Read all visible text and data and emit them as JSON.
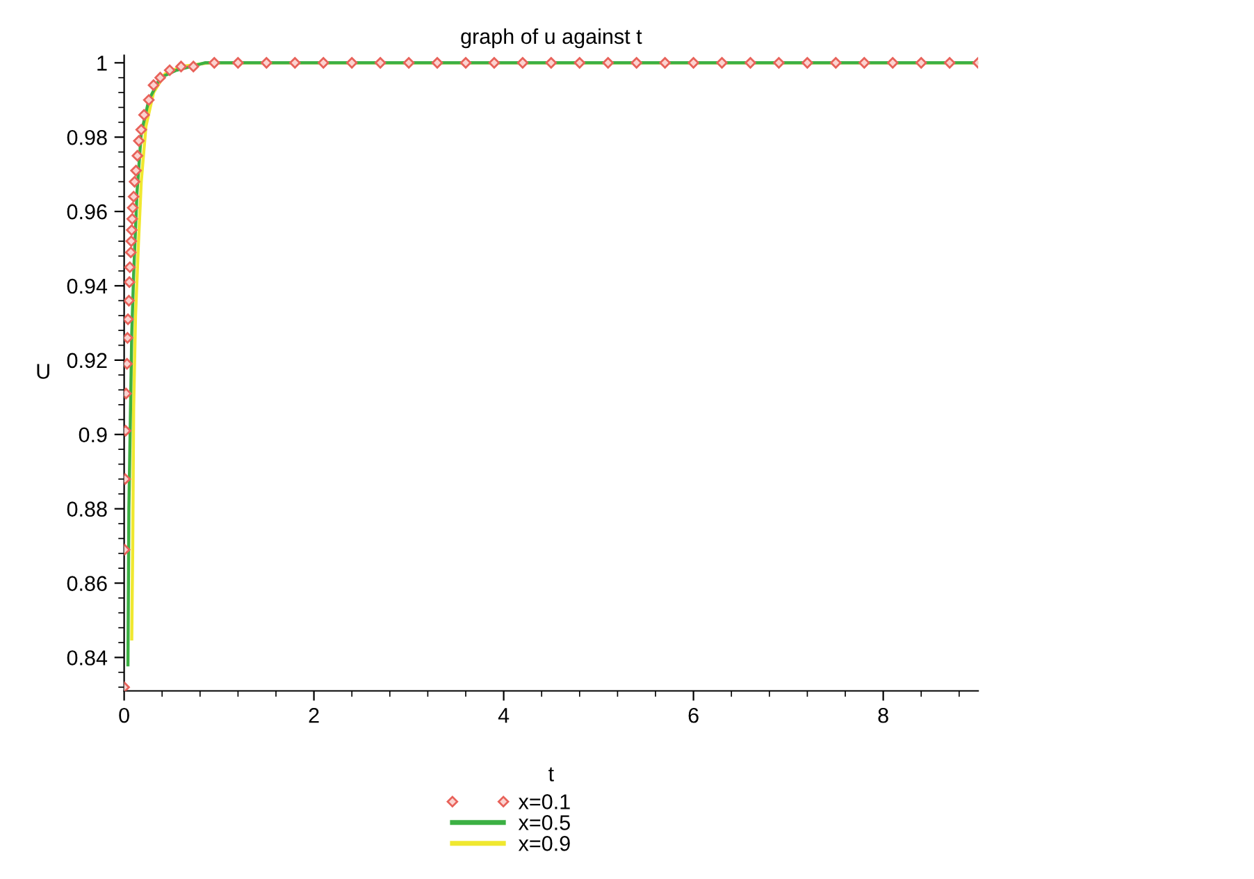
{
  "chart_data": {
    "type": "line",
    "title": "graph of u against t",
    "xlabel": "t",
    "ylabel": "U",
    "xlim": [
      0,
      9
    ],
    "ylim": [
      0.831,
      1.002
    ],
    "xticks": [
      0,
      {
        "value": 0.4,
        "label": null
      },
      {
        "value": 0.8,
        "label": null
      },
      {
        "value": 1.2,
        "label": null
      },
      {
        "value": 1.6,
        "label": null
      },
      2,
      {
        "value": 2.4,
        "label": null
      },
      {
        "value": 2.8,
        "label": null
      },
      {
        "value": 3.2,
        "label": null
      },
      {
        "value": 3.6,
        "label": null
      },
      4,
      {
        "value": 4.4,
        "label": null
      },
      {
        "value": 4.8,
        "label": null
      },
      {
        "value": 5.2,
        "label": null
      },
      {
        "value": 5.6,
        "label": null
      },
      6,
      {
        "value": 6.4,
        "label": null
      },
      {
        "value": 6.8,
        "label": null
      },
      {
        "value": 7.2,
        "label": null
      },
      {
        "value": 7.6,
        "label": null
      },
      8,
      {
        "value": 8.4,
        "label": null
      },
      {
        "value": 8.8,
        "label": null
      }
    ],
    "yticks": [
      {
        "value": 0.832,
        "label": null
      },
      {
        "value": 0.836,
        "label": null
      },
      0.84,
      {
        "value": 0.844,
        "label": null
      },
      {
        "value": 0.848,
        "label": null
      },
      {
        "value": 0.852,
        "label": null
      },
      {
        "value": 0.856,
        "label": null
      },
      0.86,
      {
        "value": 0.864,
        "label": null
      },
      {
        "value": 0.868,
        "label": null
      },
      {
        "value": 0.872,
        "label": null
      },
      {
        "value": 0.876,
        "label": null
      },
      0.88,
      {
        "value": 0.884,
        "label": null
      },
      {
        "value": 0.888,
        "label": null
      },
      {
        "value": 0.892,
        "label": null
      },
      {
        "value": 0.896,
        "label": null
      },
      0.9,
      {
        "value": 0.904,
        "label": null
      },
      {
        "value": 0.908,
        "label": null
      },
      {
        "value": 0.912,
        "label": null
      },
      {
        "value": 0.916,
        "label": null
      },
      0.92,
      {
        "value": 0.924,
        "label": null
      },
      {
        "value": 0.928,
        "label": null
      },
      {
        "value": 0.932,
        "label": null
      },
      {
        "value": 0.936,
        "label": null
      },
      0.94,
      {
        "value": 0.944,
        "label": null
      },
      {
        "value": 0.948,
        "label": null
      },
      {
        "value": 0.952,
        "label": null
      },
      {
        "value": 0.956,
        "label": null
      },
      0.96,
      {
        "value": 0.964,
        "label": null
      },
      {
        "value": 0.968,
        "label": null
      },
      {
        "value": 0.972,
        "label": null
      },
      {
        "value": 0.976,
        "label": null
      },
      0.98,
      {
        "value": 0.984,
        "label": null
      },
      {
        "value": 0.988,
        "label": null
      },
      {
        "value": 0.992,
        "label": null
      },
      {
        "value": 0.996,
        "label": null
      },
      1
    ],
    "grid": false,
    "legend": "bottom",
    "series": [
      {
        "name": "x=0.1",
        "type": "scatter",
        "color": "#e8625a",
        "marker": "diamond",
        "x": [
          0.0,
          0.005,
          0.01,
          0.015,
          0.02,
          0.03,
          0.035,
          0.04,
          0.05,
          0.055,
          0.06,
          0.07,
          0.075,
          0.08,
          0.085,
          0.09,
          0.1,
          0.11,
          0.125,
          0.14,
          0.155,
          0.18,
          0.21,
          0.26,
          0.31,
          0.38,
          0.48,
          0.6,
          0.73,
          0.95,
          1.2,
          1.5,
          1.8,
          2.1,
          2.4,
          2.7,
          3.0,
          3.3,
          3.6,
          3.9,
          4.2,
          4.5,
          4.8,
          5.1,
          5.4,
          5.7,
          6.0,
          6.3,
          6.6,
          6.9,
          7.2,
          7.5,
          7.8,
          8.1,
          8.4,
          8.7,
          9.0
        ],
        "values": [
          0.832,
          0.869,
          0.888,
          0.901,
          0.911,
          0.919,
          0.926,
          0.931,
          0.936,
          0.941,
          0.945,
          0.949,
          0.952,
          0.955,
          0.958,
          0.961,
          0.964,
          0.968,
          0.971,
          0.975,
          0.979,
          0.982,
          0.986,
          0.99,
          0.994,
          0.996,
          0.998,
          0.999,
          0.999,
          1,
          1,
          1,
          1,
          1,
          1,
          1,
          1,
          1,
          1,
          1,
          1,
          1,
          1,
          1,
          1,
          1,
          1,
          1,
          1,
          1,
          1,
          1,
          1,
          1,
          1,
          1,
          1
        ]
      },
      {
        "name": "x=0.5",
        "color": "#3cb043",
        "marker": "none",
        "line_style": "solid",
        "x": [
          0.04,
          0.05,
          0.08,
          0.1,
          0.135,
          0.18,
          0.26,
          0.38,
          0.55,
          0.85,
          9.0
        ],
        "values": [
          0.838,
          0.88,
          0.927,
          0.943,
          0.965,
          0.981,
          0.99,
          0.996,
          0.998,
          1,
          1
        ]
      },
      {
        "name": "x=0.9",
        "color": "#f0e830",
        "marker": "none",
        "line_style": "solid",
        "x": [
          0.08,
          0.09,
          0.1,
          0.12,
          0.15,
          0.18,
          0.23,
          0.31,
          0.43,
          0.6,
          0.9,
          9.0
        ],
        "values": [
          0.845,
          0.869,
          0.907,
          0.932,
          0.951,
          0.968,
          0.983,
          0.992,
          0.997,
          0.999,
          1,
          1
        ]
      }
    ]
  }
}
